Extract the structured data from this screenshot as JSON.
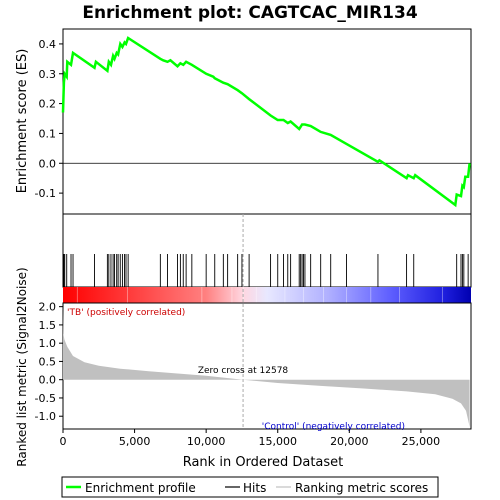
{
  "colors": {
    "es_line": "#00ff00",
    "hits": "#000000",
    "metric_fill": "#c0c0c0",
    "zero_cross": "#aaaaaa",
    "pos_text": "#cc0000",
    "neg_text": "#0000cc"
  },
  "chart_data": {
    "type": "line",
    "title": "Enrichment plot: CAGTCAC_MIR134",
    "xlabel": "Rank in Ordered Dataset",
    "x_ticks": [
      0,
      5000,
      10000,
      15000,
      20000,
      25000
    ],
    "x_tick_labels": [
      "0",
      "5,000",
      "10,000",
      "15,000",
      "20,000",
      "25,000"
    ],
    "xlim": [
      0,
      28500
    ],
    "panels": {
      "es": {
        "ylabel": "Enrichment score (ES)",
        "ylim": [
          -0.17,
          0.45
        ],
        "y_ticks": [
          -0.1,
          0.0,
          0.1,
          0.2,
          0.3,
          0.4
        ],
        "y_tick_labels": [
          "-0.1",
          "0.0",
          "0.1",
          "0.2",
          "0.3",
          "0.4"
        ]
      },
      "metric": {
        "ylabel": "Ranked list metric (Signal2Noise)",
        "ylim": [
          -1.35,
          2.1
        ],
        "y_ticks": [
          -1.0,
          -0.5,
          0.0,
          0.5,
          1.0,
          1.5,
          2.0
        ],
        "y_tick_labels": [
          "-1.0",
          "-0.5",
          "0.0",
          "0.5",
          "1.0",
          "1.5",
          "2.0"
        ]
      }
    },
    "es_profile": [
      [
        0,
        0.17
      ],
      [
        60,
        0.27
      ],
      [
        120,
        0.3
      ],
      [
        260,
        0.29
      ],
      [
        300,
        0.34
      ],
      [
        560,
        0.33
      ],
      [
        700,
        0.37
      ],
      [
        2200,
        0.32
      ],
      [
        2300,
        0.34
      ],
      [
        3100,
        0.31
      ],
      [
        3200,
        0.34
      ],
      [
        3350,
        0.33
      ],
      [
        3500,
        0.36
      ],
      [
        3600,
        0.35
      ],
      [
        3750,
        0.37
      ],
      [
        3850,
        0.365
      ],
      [
        4000,
        0.4
      ],
      [
        4150,
        0.39
      ],
      [
        4300,
        0.405
      ],
      [
        4400,
        0.4
      ],
      [
        4550,
        0.42
      ],
      [
        6800,
        0.35
      ],
      [
        7000,
        0.345
      ],
      [
        7300,
        0.34
      ],
      [
        7500,
        0.345
      ],
      [
        8000,
        0.325
      ],
      [
        8200,
        0.335
      ],
      [
        8400,
        0.33
      ],
      [
        8600,
        0.34
      ],
      [
        9000,
        0.33
      ],
      [
        10000,
        0.3
      ],
      [
        10500,
        0.29
      ],
      [
        10600,
        0.285
      ],
      [
        11200,
        0.27
      ],
      [
        11500,
        0.265
      ],
      [
        12200,
        0.245
      ],
      [
        12500,
        0.235
      ],
      [
        13000,
        0.215
      ],
      [
        14500,
        0.16
      ],
      [
        15000,
        0.145
      ],
      [
        15400,
        0.145
      ],
      [
        15700,
        0.135
      ],
      [
        15900,
        0.14
      ],
      [
        16500,
        0.115
      ],
      [
        16700,
        0.13
      ],
      [
        16900,
        0.13
      ],
      [
        17300,
        0.125
      ],
      [
        18000,
        0.105
      ],
      [
        18700,
        0.095
      ],
      [
        19800,
        0.065
      ],
      [
        22000,
        0.005
      ],
      [
        22100,
        0.01
      ],
      [
        24000,
        -0.05
      ],
      [
        24100,
        -0.04
      ],
      [
        24500,
        -0.05
      ],
      [
        24600,
        -0.04
      ],
      [
        27400,
        -0.14
      ],
      [
        27500,
        -0.105
      ],
      [
        27800,
        -0.11
      ],
      [
        27900,
        -0.075
      ],
      [
        28000,
        -0.08
      ],
      [
        28100,
        -0.045
      ],
      [
        28300,
        -0.045
      ],
      [
        28400,
        0.0
      ]
    ],
    "hits": [
      60,
      120,
      260,
      560,
      700,
      2200,
      3100,
      3200,
      3350,
      3500,
      3600,
      3750,
      3850,
      4000,
      4150,
      4300,
      4400,
      4550,
      6800,
      7300,
      8000,
      8200,
      8400,
      8600,
      9000,
      10000,
      10600,
      11200,
      11500,
      12200,
      12500,
      13000,
      14500,
      15000,
      15400,
      15700,
      15900,
      16500,
      16600,
      16700,
      16800,
      16900,
      17300,
      18000,
      18700,
      19800,
      22000,
      24000,
      24500,
      27500,
      27800,
      27900,
      28000,
      28300
    ],
    "metric_profile": [
      [
        0,
        2.0
      ],
      [
        30,
        1.25
      ],
      [
        100,
        1.1
      ],
      [
        300,
        0.9
      ],
      [
        700,
        0.65
      ],
      [
        1500,
        0.48
      ],
      [
        2500,
        0.38
      ],
      [
        4000,
        0.3
      ],
      [
        6000,
        0.23
      ],
      [
        8000,
        0.17
      ],
      [
        10000,
        0.11
      ],
      [
        12578,
        0.0
      ],
      [
        15000,
        -0.09
      ],
      [
        18000,
        -0.17
      ],
      [
        21000,
        -0.24
      ],
      [
        24000,
        -0.32
      ],
      [
        26000,
        -0.4
      ],
      [
        27200,
        -0.52
      ],
      [
        27800,
        -0.65
      ],
      [
        28150,
        -0.85
      ],
      [
        28350,
        -1.2
      ],
      [
        28400,
        -1.3
      ]
    ],
    "zero_cross_label": "Zero cross at 12578",
    "zero_cross": 12578,
    "pos_label": "'TB' (positively correlated)",
    "neg_label": "'Control' (negatively correlated)",
    "legend": {
      "position": "bottom",
      "entries": [
        "Enrichment profile",
        "Hits",
        "Ranking metric scores"
      ]
    }
  }
}
